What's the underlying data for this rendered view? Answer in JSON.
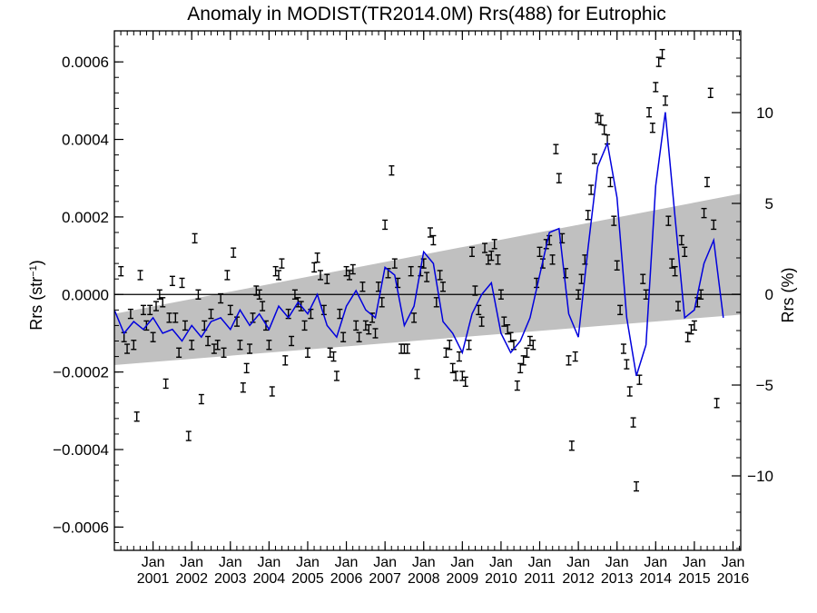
{
  "chart_data": {
    "type": "scatter",
    "title": "Anomaly in MODIST(TR2014.0M) Rrs(488) for Eutrophic",
    "ylabel_left": {
      "base": "Rrs (str",
      "sup": "−1",
      "end": ")"
    },
    "ylabel_right": "Rrs (%)",
    "xlim": [
      2000.0,
      2016.2
    ],
    "ylim_left": [
      -0.00066,
      0.00068
    ],
    "ylim_right": [
      -14.1,
      14.5
    ],
    "x_ticks": [
      {
        "top": "Jan",
        "bottom": "2001",
        "x": 2001
      },
      {
        "top": "Jan",
        "bottom": "2002",
        "x": 2002
      },
      {
        "top": "Jan",
        "bottom": "2003",
        "x": 2003
      },
      {
        "top": "Jan",
        "bottom": "2004",
        "x": 2004
      },
      {
        "top": "Jan",
        "bottom": "2005",
        "x": 2005
      },
      {
        "top": "Jan",
        "bottom": "2006",
        "x": 2006
      },
      {
        "top": "Jan",
        "bottom": "2007",
        "x": 2007
      },
      {
        "top": "Jan",
        "bottom": "2008",
        "x": 2008
      },
      {
        "top": "Jan",
        "bottom": "2009",
        "x": 2009
      },
      {
        "top": "Jan",
        "bottom": "2010",
        "x": 2010
      },
      {
        "top": "Jan",
        "bottom": "2011",
        "x": 2011
      },
      {
        "top": "Jan",
        "bottom": "2012",
        "x": 2012
      },
      {
        "top": "Jan",
        "bottom": "2013",
        "x": 2013
      },
      {
        "top": "Jan",
        "bottom": "2014",
        "x": 2014
      },
      {
        "top": "Jan",
        "bottom": "2015",
        "x": 2015
      },
      {
        "top": "Jan",
        "bottom": "2016",
        "x": 2016
      }
    ],
    "y_ticks_left": [
      {
        "value": 0.0006,
        "label": "0.0006"
      },
      {
        "value": 0.0004,
        "label": "0.0004"
      },
      {
        "value": 0.0002,
        "label": "0.0002"
      },
      {
        "value": 0.0,
        "label": "0.0000"
      },
      {
        "value": -0.0002,
        "label": "−0.0002"
      },
      {
        "value": -0.0004,
        "label": "−0.0004"
      },
      {
        "value": -0.0006,
        "label": "−0.0006"
      }
    ],
    "y_ticks_right": [
      {
        "value": 10,
        "label": "10"
      },
      {
        "value": 5,
        "label": "5"
      },
      {
        "value": 0,
        "label": "0"
      },
      {
        "value": -5,
        "label": "−5"
      },
      {
        "value": -10,
        "label": "−10"
      }
    ],
    "band": {
      "x_start": 2000.0,
      "x_end": 2016.2,
      "upper_start": -5e-05,
      "upper_end": 0.00026,
      "lower_start": -0.000182,
      "lower_end": -5.2e-05
    },
    "zero_line": 0.0,
    "colors": {
      "points": "#000000",
      "smooth": "#0000dd",
      "band": "#c0c0c0",
      "axes": "#000000"
    },
    "monthly_points": [
      [
        2000.17,
        6e-05
      ],
      [
        2000.25,
        -0.00011
      ],
      [
        2000.33,
        -0.00014
      ],
      [
        2000.42,
        -5e-05
      ],
      [
        2000.5,
        -0.00013
      ],
      [
        2000.58,
        -0.000315
      ],
      [
        2000.67,
        5e-05
      ],
      [
        2000.75,
        -4e-05
      ],
      [
        2000.83,
        -8e-05
      ],
      [
        2000.92,
        -4e-05
      ],
      [
        2001.0,
        -0.00011
      ],
      [
        2001.08,
        -3e-05
      ],
      [
        2001.17,
        0.0
      ],
      [
        2001.25,
        -2e-05
      ],
      [
        2001.33,
        -0.00023
      ],
      [
        2001.42,
        -6e-05
      ],
      [
        2001.5,
        3.5e-05
      ],
      [
        2001.58,
        -6e-05
      ],
      [
        2001.67,
        -0.00015
      ],
      [
        2001.75,
        3e-05
      ],
      [
        2001.83,
        -8e-05
      ],
      [
        2001.92,
        -0.000365
      ],
      [
        2002.0,
        -0.00013
      ],
      [
        2002.08,
        0.000145
      ],
      [
        2002.17,
        0.0
      ],
      [
        2002.25,
        -0.00027
      ],
      [
        2002.33,
        -8e-05
      ],
      [
        2002.42,
        -0.00012
      ],
      [
        2002.5,
        -5e-05
      ],
      [
        2002.58,
        -0.00014
      ],
      [
        2002.67,
        -0.00013
      ],
      [
        2002.75,
        -1e-05
      ],
      [
        2002.83,
        -0.00015
      ],
      [
        2002.92,
        5e-05
      ],
      [
        2003.0,
        -4e-05
      ],
      [
        2003.08,
        0.000108
      ],
      [
        2003.17,
        -7e-05
      ],
      [
        2003.25,
        -0.00013
      ],
      [
        2003.33,
        -0.00024
      ],
      [
        2003.42,
        -0.00019
      ],
      [
        2003.5,
        -0.00014
      ],
      [
        2003.58,
        -6e-05
      ],
      [
        2003.67,
        1e-05
      ],
      [
        2003.75,
        0.0
      ],
      [
        2003.83,
        -3e-05
      ],
      [
        2003.92,
        -8e-05
      ],
      [
        2004.0,
        -0.00013
      ],
      [
        2004.08,
        -0.00025
      ],
      [
        2004.17,
        6e-05
      ],
      [
        2004.25,
        5e-05
      ],
      [
        2004.33,
        8e-05
      ],
      [
        2004.42,
        -0.00017
      ],
      [
        2004.5,
        -5e-05
      ],
      [
        2004.58,
        -0.00012
      ],
      [
        2004.67,
        0.0
      ],
      [
        2004.75,
        -2e-05
      ],
      [
        2004.83,
        -3e-05
      ],
      [
        2004.92,
        -8e-05
      ],
      [
        2005.0,
        -0.00015
      ],
      [
        2005.08,
        -5e-05
      ],
      [
        2005.17,
        7e-05
      ],
      [
        2005.25,
        9.5e-05
      ],
      [
        2005.33,
        5e-05
      ],
      [
        2005.42,
        -4e-05
      ],
      [
        2005.5,
        4e-05
      ],
      [
        2005.58,
        -0.00015
      ],
      [
        2005.67,
        -0.00016
      ],
      [
        2005.75,
        -0.00021
      ],
      [
        2005.83,
        -5e-05
      ],
      [
        2005.92,
        -0.00011
      ],
      [
        2006.0,
        6e-05
      ],
      [
        2006.08,
        5e-05
      ],
      [
        2006.17,
        6.5e-05
      ],
      [
        2006.25,
        -8e-05
      ],
      [
        2006.33,
        -0.00011
      ],
      [
        2006.42,
        2e-05
      ],
      [
        2006.5,
        -8e-05
      ],
      [
        2006.58,
        -9e-05
      ],
      [
        2006.67,
        -6e-05
      ],
      [
        2006.75,
        -0.0001
      ],
      [
        2006.83,
        2e-05
      ],
      [
        2006.92,
        -2e-05
      ],
      [
        2007.0,
        0.00018
      ],
      [
        2007.08,
        5.5e-05
      ],
      [
        2007.17,
        0.00032
      ],
      [
        2007.25,
        8e-05
      ],
      [
        2007.33,
        3e-05
      ],
      [
        2007.42,
        -0.00014
      ],
      [
        2007.5,
        -0.00014
      ],
      [
        2007.58,
        -0.00014
      ],
      [
        2007.67,
        6e-05
      ],
      [
        2007.75,
        -6e-05
      ],
      [
        2007.83,
        -0.000205
      ],
      [
        2007.92,
        6e-05
      ],
      [
        2008.0,
        8e-05
      ],
      [
        2008.08,
        4.5e-05
      ],
      [
        2008.17,
        0.00016
      ],
      [
        2008.25,
        0.00014
      ],
      [
        2008.33,
        -2e-05
      ],
      [
        2008.42,
        5e-05
      ],
      [
        2008.5,
        2e-05
      ],
      [
        2008.58,
        -0.00015
      ],
      [
        2008.67,
        -0.00013
      ],
      [
        2008.75,
        -0.00019
      ],
      [
        2008.83,
        -0.00021
      ],
      [
        2008.92,
        -0.00016
      ],
      [
        2009.0,
        -0.00021
      ],
      [
        2009.08,
        -0.000225
      ],
      [
        2009.17,
        -0.00013
      ],
      [
        2009.25,
        0.00011
      ],
      [
        2009.33,
        1e-05
      ],
      [
        2009.42,
        -4e-05
      ],
      [
        2009.5,
        -7e-05
      ],
      [
        2009.58,
        0.00012
      ],
      [
        2009.67,
        9e-05
      ],
      [
        2009.75,
        0.0001
      ],
      [
        2009.83,
        0.00013
      ],
      [
        2009.92,
        9e-05
      ],
      [
        2010.0,
        0.0
      ],
      [
        2010.08,
        -7e-05
      ],
      [
        2010.17,
        -9e-05
      ],
      [
        2010.25,
        -0.00011
      ],
      [
        2010.33,
        -0.00013
      ],
      [
        2010.42,
        -0.000235
      ],
      [
        2010.5,
        -0.00019
      ],
      [
        2010.58,
        -0.00017
      ],
      [
        2010.67,
        -0.00015
      ],
      [
        2010.75,
        -0.00012
      ],
      [
        2010.83,
        -0.00013
      ],
      [
        2010.92,
        3e-05
      ],
      [
        2011.0,
        0.00011
      ],
      [
        2011.08,
        8e-05
      ],
      [
        2011.17,
        0.00013
      ],
      [
        2011.25,
        0.00014
      ],
      [
        2011.33,
        9e-05
      ],
      [
        2011.42,
        0.000375
      ],
      [
        2011.5,
        0.0003
      ],
      [
        2011.58,
        0.000145
      ],
      [
        2011.67,
        5.5e-05
      ],
      [
        2011.75,
        -0.00017
      ],
      [
        2011.83,
        -0.00039
      ],
      [
        2011.92,
        -0.00016
      ],
      [
        2012.0,
        0.0
      ],
      [
        2012.08,
        4e-05
      ],
      [
        2012.17,
        9e-05
      ],
      [
        2012.25,
        0.000205
      ],
      [
        2012.33,
        0.00027
      ],
      [
        2012.42,
        0.00035
      ],
      [
        2012.5,
        0.000455
      ],
      [
        2012.58,
        0.00045
      ],
      [
        2012.67,
        0.000425
      ],
      [
        2012.75,
        0.0004
      ],
      [
        2012.83,
        0.00029
      ],
      [
        2012.92,
        0.00019
      ],
      [
        2013.0,
        7.5e-05
      ],
      [
        2013.08,
        -4e-05
      ],
      [
        2013.17,
        -0.00014
      ],
      [
        2013.25,
        -0.00018
      ],
      [
        2013.33,
        -0.00025
      ],
      [
        2013.42,
        -0.00033
      ],
      [
        2013.5,
        -0.000495
      ],
      [
        2013.58,
        -0.00022
      ],
      [
        2013.67,
        4e-05
      ],
      [
        2013.75,
        0.0
      ],
      [
        2013.83,
        0.00047
      ],
      [
        2013.92,
        0.00043
      ],
      [
        2014.0,
        0.000535
      ],
      [
        2014.08,
        0.0006
      ],
      [
        2014.17,
        0.00062
      ],
      [
        2014.25,
        0.0005
      ],
      [
        2014.33,
        0.00019
      ],
      [
        2014.42,
        8e-05
      ],
      [
        2014.5,
        6e-05
      ],
      [
        2014.58,
        -3e-05
      ],
      [
        2014.67,
        0.00014
      ],
      [
        2014.75,
        0.00011
      ],
      [
        2014.83,
        -0.00011
      ],
      [
        2014.92,
        -9e-05
      ],
      [
        2015.0,
        -8e-05
      ],
      [
        2015.08,
        -2e-05
      ],
      [
        2015.17,
        0.0
      ],
      [
        2015.25,
        0.00021
      ],
      [
        2015.33,
        0.00029
      ],
      [
        2015.42,
        0.00052
      ],
      [
        2015.5,
        0.00018
      ],
      [
        2015.58,
        -0.00028
      ]
    ],
    "smooth_line": [
      [
        2000.0,
        -4e-05
      ],
      [
        2000.25,
        -0.0001
      ],
      [
        2000.5,
        -7e-05
      ],
      [
        2000.75,
        -9e-05
      ],
      [
        2001.0,
        -6e-05
      ],
      [
        2001.25,
        -0.0001
      ],
      [
        2001.5,
        -9e-05
      ],
      [
        2001.75,
        -0.00012
      ],
      [
        2002.0,
        -8e-05
      ],
      [
        2002.25,
        -0.00011
      ],
      [
        2002.5,
        -7e-05
      ],
      [
        2002.75,
        -6e-05
      ],
      [
        2003.0,
        -9e-05
      ],
      [
        2003.25,
        -4e-05
      ],
      [
        2003.5,
        -8e-05
      ],
      [
        2003.75,
        -5e-05
      ],
      [
        2004.0,
        -9e-05
      ],
      [
        2004.25,
        -3e-05
      ],
      [
        2004.5,
        -6e-05
      ],
      [
        2004.75,
        -2e-05
      ],
      [
        2005.0,
        -5e-05
      ],
      [
        2005.25,
        0.0
      ],
      [
        2005.5,
        -8e-05
      ],
      [
        2005.75,
        -0.00011
      ],
      [
        2006.0,
        -3e-05
      ],
      [
        2006.25,
        1e-05
      ],
      [
        2006.5,
        -4e-05
      ],
      [
        2006.75,
        -6e-05
      ],
      [
        2007.0,
        7e-05
      ],
      [
        2007.25,
        5e-05
      ],
      [
        2007.5,
        -8e-05
      ],
      [
        2007.75,
        -3e-05
      ],
      [
        2008.0,
        0.00011
      ],
      [
        2008.25,
        8e-05
      ],
      [
        2008.5,
        -7e-05
      ],
      [
        2008.75,
        -0.0001
      ],
      [
        2009.0,
        -0.00015
      ],
      [
        2009.25,
        -5e-05
      ],
      [
        2009.5,
        0.0
      ],
      [
        2009.75,
        3e-05
      ],
      [
        2010.0,
        -0.0001
      ],
      [
        2010.25,
        -0.00015
      ],
      [
        2010.5,
        -0.00012
      ],
      [
        2010.75,
        -6e-05
      ],
      [
        2011.0,
        5e-05
      ],
      [
        2011.25,
        0.00016
      ],
      [
        2011.5,
        0.00017
      ],
      [
        2011.75,
        -5e-05
      ],
      [
        2012.0,
        -0.00011
      ],
      [
        2012.25,
        0.00012
      ],
      [
        2012.5,
        0.00033
      ],
      [
        2012.75,
        0.00039
      ],
      [
        2013.0,
        0.00025
      ],
      [
        2013.25,
        -6e-05
      ],
      [
        2013.5,
        -0.00021
      ],
      [
        2013.75,
        -0.00013
      ],
      [
        2014.0,
        0.00028
      ],
      [
        2014.25,
        0.00047
      ],
      [
        2014.5,
        0.0002
      ],
      [
        2014.75,
        -6e-05
      ],
      [
        2015.0,
        -4e-05
      ],
      [
        2015.25,
        8e-05
      ],
      [
        2015.5,
        0.00014
      ],
      [
        2015.75,
        -6e-05
      ]
    ]
  }
}
